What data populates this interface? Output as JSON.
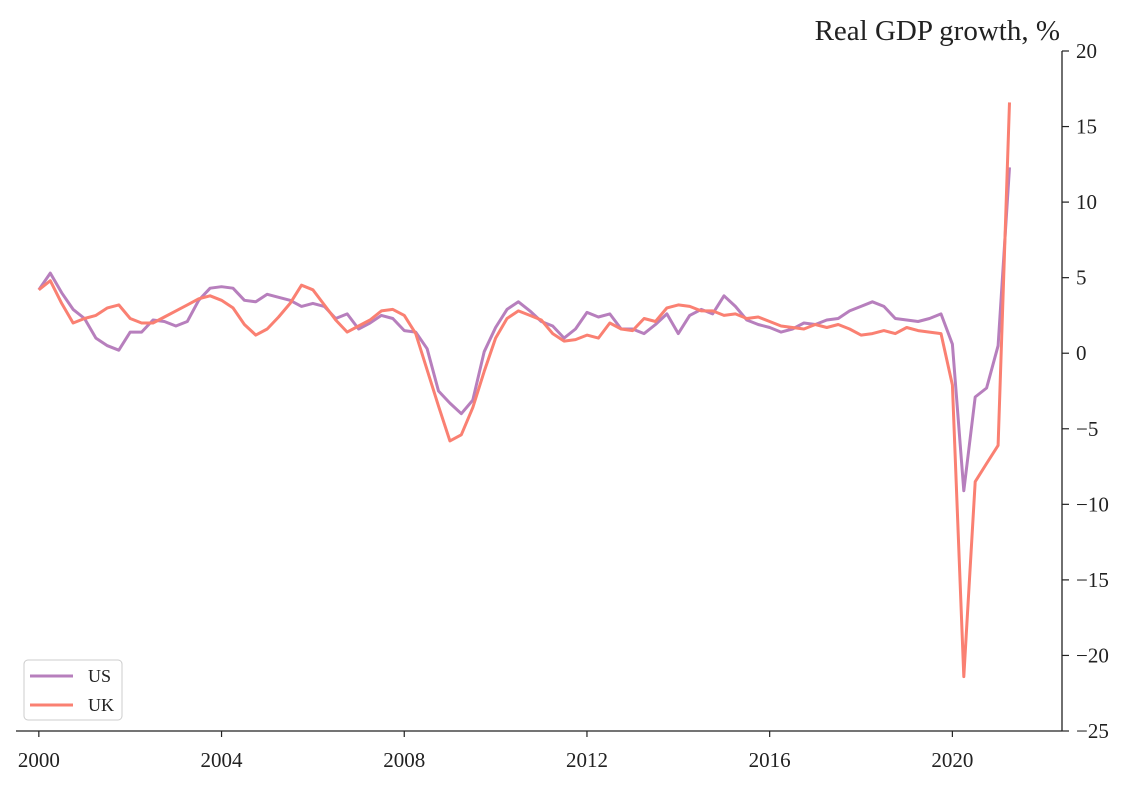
{
  "chart_data": {
    "type": "line",
    "title": "Real GDP growth, %",
    "x_axis": {
      "range": [
        1999.5,
        2022.4
      ],
      "ticks": [
        2000,
        2004,
        2008,
        2012,
        2016,
        2020
      ],
      "tick_labels": [
        "2000",
        "2004",
        "2008",
        "2012",
        "2016",
        "2020"
      ]
    },
    "y_axis": {
      "range": [
        -25,
        20
      ],
      "position": "right",
      "ticks": [
        20,
        15,
        10,
        5,
        0,
        -5,
        -10,
        -15,
        -20,
        -25
      ],
      "tick_labels": [
        "20",
        "15",
        "10",
        "5",
        "0",
        "−5",
        "−10",
        "−15",
        "−20",
        "−25"
      ]
    },
    "grid": false,
    "legend": {
      "position": "bottom-left"
    },
    "x": [
      2000.0,
      2000.25,
      2000.5,
      2000.75,
      2001.0,
      2001.25,
      2001.5,
      2001.75,
      2002.0,
      2002.25,
      2002.5,
      2002.75,
      2003.0,
      2003.25,
      2003.5,
      2003.75,
      2004.0,
      2004.25,
      2004.5,
      2004.75,
      2005.0,
      2005.25,
      2005.5,
      2005.75,
      2006.0,
      2006.25,
      2006.5,
      2006.75,
      2007.0,
      2007.25,
      2007.5,
      2007.75,
      2008.0,
      2008.25,
      2008.5,
      2008.75,
      2009.0,
      2009.25,
      2009.5,
      2009.75,
      2010.0,
      2010.25,
      2010.5,
      2010.75,
      2011.0,
      2011.25,
      2011.5,
      2011.75,
      2012.0,
      2012.25,
      2012.5,
      2012.75,
      2013.0,
      2013.25,
      2013.5,
      2013.75,
      2014.0,
      2014.25,
      2014.5,
      2014.75,
      2015.0,
      2015.25,
      2015.5,
      2015.75,
      2016.0,
      2016.25,
      2016.5,
      2016.75,
      2017.0,
      2017.25,
      2017.5,
      2017.75,
      2018.0,
      2018.25,
      2018.5,
      2018.75,
      2019.0,
      2019.25,
      2019.5,
      2019.75,
      2020.0,
      2020.25,
      2020.5,
      2020.75,
      2021.0,
      2021.25
    ],
    "series": [
      {
        "name": "US",
        "color": "#b77fbd",
        "values": [
          4.2,
          5.3,
          4.0,
          2.9,
          2.3,
          1.0,
          0.5,
          0.2,
          1.4,
          1.4,
          2.2,
          2.1,
          1.8,
          2.1,
          3.5,
          4.3,
          4.4,
          4.3,
          3.5,
          3.4,
          3.9,
          3.7,
          3.5,
          3.1,
          3.3,
          3.1,
          2.3,
          2.6,
          1.6,
          2.0,
          2.5,
          2.3,
          1.5,
          1.4,
          0.3,
          -2.5,
          -3.3,
          -4.0,
          -3.1,
          0.1,
          1.7,
          2.9,
          3.4,
          2.8,
          2.1,
          1.8,
          1.0,
          1.6,
          2.7,
          2.4,
          2.6,
          1.6,
          1.6,
          1.3,
          1.9,
          2.6,
          1.3,
          2.5,
          2.9,
          2.6,
          3.8,
          3.1,
          2.2,
          1.9,
          1.7,
          1.4,
          1.6,
          2.0,
          1.9,
          2.2,
          2.3,
          2.8,
          3.1,
          3.4,
          3.1,
          2.3,
          2.2,
          2.1,
          2.3,
          2.6,
          0.6,
          -9.1,
          -2.9,
          -2.3,
          0.5,
          12.3
        ]
      },
      {
        "name": "UK",
        "color": "#fa8072",
        "values": [
          4.2,
          4.8,
          3.3,
          2.0,
          2.3,
          2.5,
          3.0,
          3.2,
          2.3,
          2.0,
          2.0,
          2.4,
          2.8,
          3.2,
          3.6,
          3.8,
          3.5,
          3.0,
          1.9,
          1.2,
          1.6,
          2.4,
          3.3,
          4.5,
          4.2,
          3.2,
          2.2,
          1.4,
          1.8,
          2.2,
          2.8,
          2.9,
          2.5,
          1.3,
          -1.1,
          -3.5,
          -5.8,
          -5.4,
          -3.6,
          -1.2,
          1.0,
          2.3,
          2.8,
          2.5,
          2.2,
          1.3,
          0.8,
          0.9,
          1.2,
          1.0,
          2.0,
          1.6,
          1.5,
          2.3,
          2.1,
          3.0,
          3.2,
          3.1,
          2.8,
          2.8,
          2.5,
          2.6,
          2.3,
          2.4,
          2.1,
          1.8,
          1.7,
          1.6,
          1.9,
          1.7,
          1.9,
          1.6,
          1.2,
          1.3,
          1.5,
          1.3,
          1.7,
          1.5,
          1.4,
          1.3,
          -2.1,
          -21.4,
          -8.5,
          -7.3,
          -6.1,
          16.6
        ]
      }
    ]
  }
}
